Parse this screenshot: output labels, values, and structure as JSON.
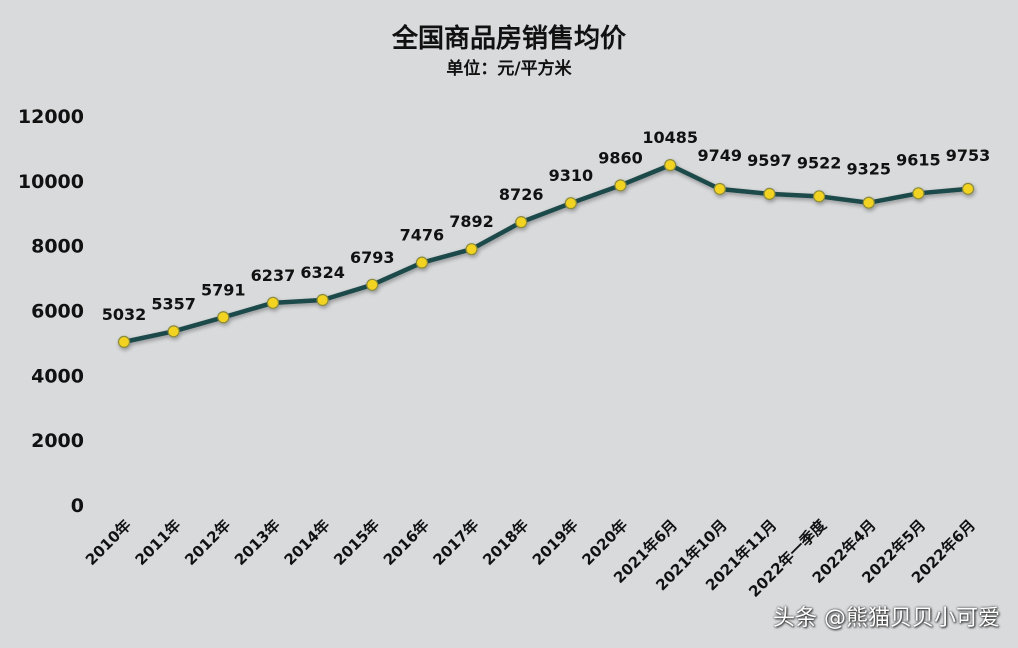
{
  "header": {
    "title": "全国商品房销售均价",
    "subtitle": "单位：元/平方米"
  },
  "watermark": "头条 @熊猫贝贝小可爱",
  "colors": {
    "background": "#d9dadc",
    "line": "#1b4a4a",
    "marker_fill": "#f2d321",
    "marker_stroke": "#8a8a3a",
    "text": "#111111"
  },
  "chart_data": {
    "type": "line",
    "title": "全国商品房销售均价",
    "subtitle": "单位：元/平方米",
    "xlabel": "",
    "ylabel": "",
    "ylim": [
      0,
      12000
    ],
    "yticks": [
      0,
      2000,
      4000,
      6000,
      8000,
      10000,
      12000
    ],
    "grid": false,
    "legend": "none",
    "categories": [
      "2010年",
      "2011年",
      "2012年",
      "2013年",
      "2014年",
      "2015年",
      "2016年",
      "2017年",
      "2018年",
      "2019年",
      "2020年",
      "2021年6月",
      "2021年10月",
      "2021年11月",
      "2022年一季度",
      "2022年4月",
      "2022年5月",
      "2022年6月"
    ],
    "series": [
      {
        "name": "全国商品房销售均价",
        "values": [
          5032,
          5357,
          5791,
          6237,
          6324,
          6793,
          7476,
          7892,
          8726,
          9310,
          9860,
          10485,
          9749,
          9597,
          9522,
          9325,
          9615,
          9753
        ]
      }
    ]
  }
}
